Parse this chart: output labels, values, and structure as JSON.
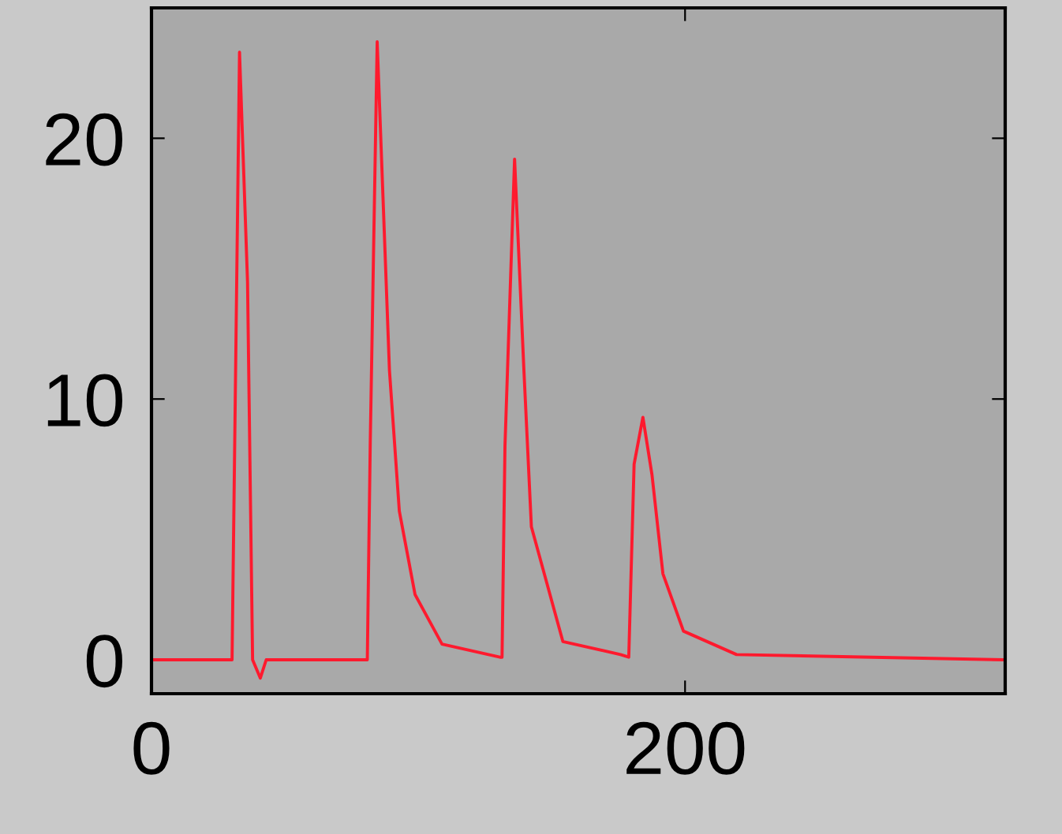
{
  "chart_data": {
    "type": "line",
    "x": [
      0,
      30.2,
      33,
      36,
      37.9,
      40.8,
      43,
      80.9,
      82,
      84.6,
      89.2,
      92.9,
      98.8,
      108.9,
      130.6,
      131.4,
      132.5,
      136.1,
      139.6,
      142.4,
      148.3,
      154.2,
      175.8,
      178.9,
      180.9,
      184.2,
      187.6,
      191.7,
      199.4,
      219.3,
      320
    ],
    "series": [
      {
        "color": "#ff1a2e",
        "values": [
          0,
          0,
          23.3,
          14.5,
          0,
          -0.7,
          0,
          0,
          8.3,
          23.7,
          11.1,
          5.7,
          2.5,
          0.6,
          0.1,
          0.1,
          8.2,
          19.2,
          11.1,
          5.1,
          2.9,
          0.7,
          0.2,
          0.1,
          7.5,
          9.3,
          7.1,
          3.3,
          1.1,
          0.2,
          0
        ]
      }
    ],
    "xlim": [
      0,
      320
    ],
    "xticks": [
      0,
      200
    ],
    "ylim": [
      -1.3,
      25
    ],
    "yticks": [
      0,
      10,
      20
    ],
    "grid": false,
    "legend": false
  }
}
